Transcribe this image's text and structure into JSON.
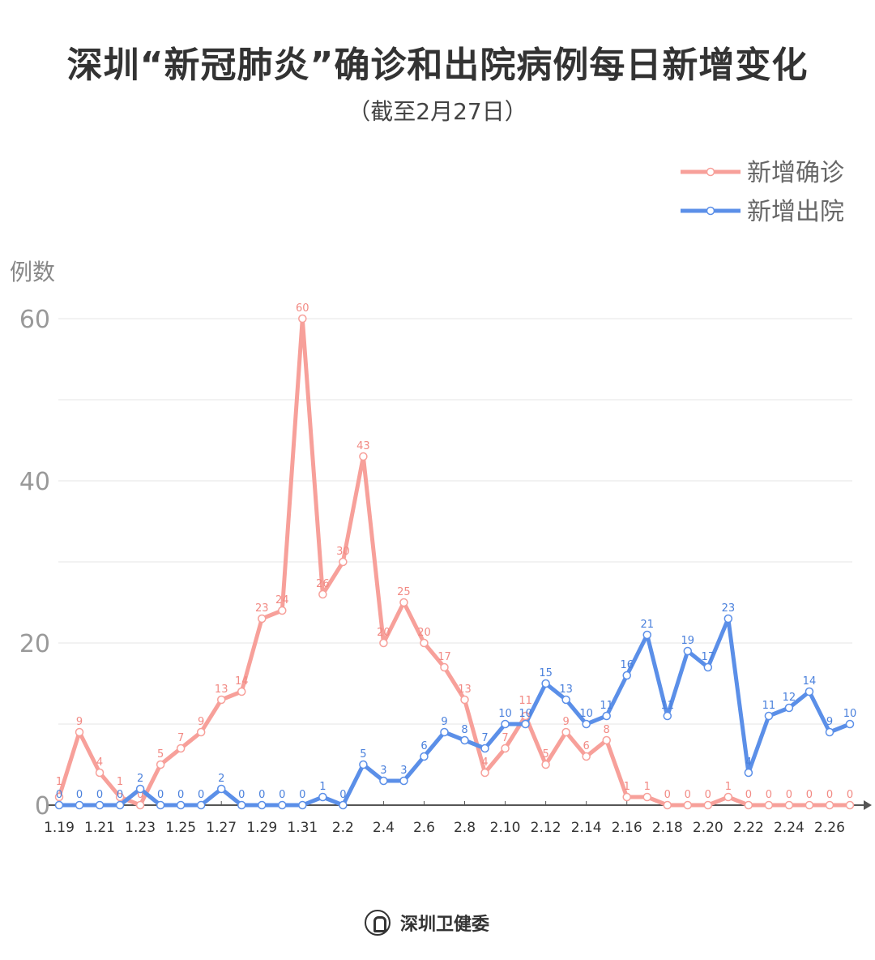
{
  "title": "深圳“新冠肺炎”确诊和出院病例每日新增变化",
  "subtitle": "（截至2月27日）",
  "footer": {
    "organization": "深圳卫健委"
  },
  "chart_data": {
    "type": "line",
    "title": "深圳“新冠肺炎”确诊和出院病例每日新增变化",
    "subtitle": "（截至2月27日）",
    "ylabel": "例数",
    "xlabel": "",
    "ylim": [
      0,
      60
    ],
    "yticks": [
      0,
      20,
      40,
      60
    ],
    "grid": true,
    "legend_position": "top-right",
    "x": [
      "1.19",
      "1.20",
      "1.21",
      "1.22",
      "1.23",
      "1.24",
      "1.25",
      "1.26",
      "1.27",
      "1.28",
      "1.29",
      "1.30",
      "1.31",
      "2.1",
      "2.2",
      "2.3",
      "2.4",
      "2.5",
      "2.6",
      "2.7",
      "2.8",
      "2.9",
      "2.10",
      "2.11",
      "2.12",
      "2.13",
      "2.14",
      "2.15",
      "2.16",
      "2.17",
      "2.18",
      "2.19",
      "2.20",
      "2.21",
      "2.22",
      "2.23",
      "2.24",
      "2.25",
      "2.26",
      "2.27"
    ],
    "xtick_labels": [
      "1.19",
      "1.21",
      "1.23",
      "1.25",
      "1.27",
      "1.29",
      "1.31",
      "2.2",
      "2.4",
      "2.6",
      "2.8",
      "2.10",
      "2.12",
      "2.14",
      "2.16",
      "2.18",
      "2.20",
      "2.22",
      "2.24",
      "2.26"
    ],
    "series": [
      {
        "name": "新增确诊",
        "color": "#f7a09a",
        "label_color": "#f28a84",
        "values": [
          1,
          9,
          4,
          1,
          0,
          5,
          7,
          9,
          13,
          14,
          23,
          24,
          60,
          26,
          30,
          43,
          20,
          25,
          20,
          17,
          13,
          4,
          7,
          11,
          5,
          9,
          6,
          8,
          1,
          1,
          0,
          0,
          0,
          1,
          0,
          0,
          0,
          0,
          0,
          0
        ]
      },
      {
        "name": "新增出院",
        "color": "#5b8fe8",
        "label_color": "#4a80dc",
        "values": [
          0,
          0,
          0,
          0,
          2,
          0,
          0,
          0,
          2,
          0,
          0,
          0,
          0,
          1,
          0,
          5,
          3,
          3,
          6,
          9,
          8,
          7,
          10,
          10,
          15,
          13,
          10,
          11,
          16,
          21,
          11,
          19,
          17,
          23,
          4,
          11,
          12,
          14,
          9,
          10
        ]
      }
    ]
  }
}
